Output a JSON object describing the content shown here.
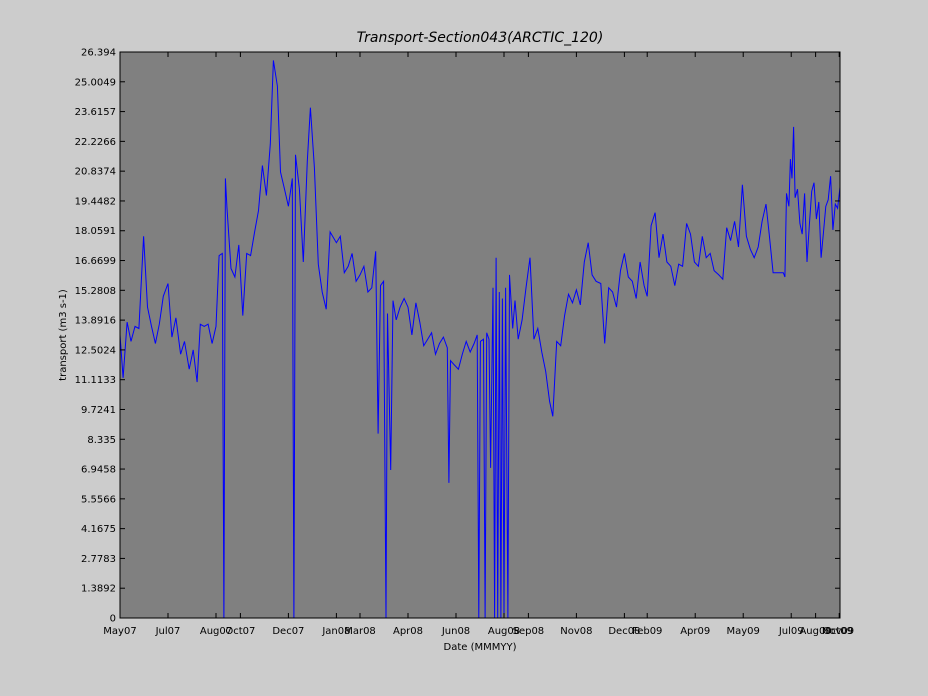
{
  "chart_data": {
    "type": "line",
    "title": "Transport-Section043(ARCTIC_120)",
    "xlabel": "Date (MMMYY)",
    "ylabel": "transport (m3 s-1)",
    "ylim": [
      0,
      26.394
    ],
    "xlim": [
      "2007-05-01",
      "2009-11-01"
    ],
    "grid": false,
    "legend": "none",
    "colors": {
      "figure_background": "#cccccc",
      "plot_background": "#808080",
      "line": "#0000ff",
      "axes": "#000000"
    },
    "y_ticks": [
      {
        "value": 0,
        "label": "0"
      },
      {
        "value": 1.3892,
        "label": "1.3892"
      },
      {
        "value": 2.7783,
        "label": "2.7783"
      },
      {
        "value": 4.1675,
        "label": "4.1675"
      },
      {
        "value": 5.5566,
        "label": "5.5566"
      },
      {
        "value": 6.9458,
        "label": "6.9458"
      },
      {
        "value": 8.335,
        "label": "8.335"
      },
      {
        "value": 9.7241,
        "label": "9.7241"
      },
      {
        "value": 11.1133,
        "label": "11.1133"
      },
      {
        "value": 12.5024,
        "label": "12.5024"
      },
      {
        "value": 13.8916,
        "label": "13.8916"
      },
      {
        "value": 15.2808,
        "label": "15.2808"
      },
      {
        "value": 16.6699,
        "label": "16.6699"
      },
      {
        "value": 18.0591,
        "label": "18.0591"
      },
      {
        "value": 19.4482,
        "label": "19.4482"
      },
      {
        "value": 20.8374,
        "label": "20.8374"
      },
      {
        "value": 22.2266,
        "label": "22.2266"
      },
      {
        "value": 23.6157,
        "label": "23.6157"
      },
      {
        "value": 25.0049,
        "label": "25.0049"
      },
      {
        "value": 26.394,
        "label": "26.394"
      }
    ],
    "x_ticks": [
      {
        "date": "2007-05-01",
        "label": "May07"
      },
      {
        "date": "2007-07-01",
        "label": "Jul07"
      },
      {
        "date": "2007-08-31",
        "label": "Aug07"
      },
      {
        "date": "2007-10-01",
        "label": "Oct07"
      },
      {
        "date": "2007-12-01",
        "label": "Dec07"
      },
      {
        "date": "2008-01-31",
        "label": "Jan08"
      },
      {
        "date": "2008-03-01",
        "label": "Mar08"
      },
      {
        "date": "2008-05-01",
        "label": "Apr08"
      },
      {
        "date": "2008-07-01",
        "label": "Jun08"
      },
      {
        "date": "2008-08-31",
        "label": "Aug08"
      },
      {
        "date": "2008-10-01",
        "label": "Sep08"
      },
      {
        "date": "2008-12-01",
        "label": "Nov08"
      },
      {
        "date": "2009-01-31",
        "label": "Dec08"
      },
      {
        "date": "2009-03-01",
        "label": "Feb09"
      },
      {
        "date": "2009-05-01",
        "label": "Apr09"
      },
      {
        "date": "2009-07-01",
        "label": "May09"
      },
      {
        "date": "2009-08-31",
        "label": "Jul09"
      },
      {
        "date": "2009-10-01",
        "label": "Aug09"
      },
      {
        "date": "2009-10-31",
        "label": "Oct09"
      },
      {
        "date": "2009-11-01",
        "label": "Nov09"
      }
    ],
    "series": [
      {
        "points": [
          [
            "2007-05-01",
            13.2
          ],
          [
            "2007-05-05",
            11.2
          ],
          [
            "2007-05-10",
            13.8
          ],
          [
            "2007-05-15",
            12.9
          ],
          [
            "2007-05-20",
            13.6
          ],
          [
            "2007-05-25",
            13.5
          ],
          [
            "2007-05-31",
            17.8
          ],
          [
            "2007-06-05",
            14.5
          ],
          [
            "2007-06-10",
            13.6
          ],
          [
            "2007-06-15",
            12.8
          ],
          [
            "2007-06-20",
            13.7
          ],
          [
            "2007-06-25",
            15.0
          ],
          [
            "2007-07-01",
            15.6
          ],
          [
            "2007-07-06",
            13.1
          ],
          [
            "2007-07-11",
            14.0
          ],
          [
            "2007-07-17",
            12.3
          ],
          [
            "2007-07-22",
            12.9
          ],
          [
            "2007-07-28",
            11.6
          ],
          [
            "2007-08-02",
            12.5
          ],
          [
            "2007-08-07",
            11.0
          ],
          [
            "2007-08-11",
            13.7
          ],
          [
            "2007-08-16",
            13.6
          ],
          [
            "2007-08-21",
            13.7
          ],
          [
            "2007-08-26",
            12.8
          ],
          [
            "2007-08-31",
            13.6
          ],
          [
            "2007-09-04",
            16.9
          ],
          [
            "2007-09-08",
            17.0
          ],
          [
            "2007-09-10",
            0.0
          ],
          [
            "2007-09-12",
            20.5
          ],
          [
            "2007-09-14",
            19.1
          ],
          [
            "2007-09-19",
            16.3
          ],
          [
            "2007-09-24",
            15.9
          ],
          [
            "2007-09-29",
            17.4
          ],
          [
            "2007-10-04",
            14.1
          ],
          [
            "2007-10-09",
            17.0
          ],
          [
            "2007-10-14",
            16.9
          ],
          [
            "2007-10-19",
            18.0
          ],
          [
            "2007-10-24",
            19.0
          ],
          [
            "2007-10-29",
            21.1
          ],
          [
            "2007-11-03",
            19.7
          ],
          [
            "2007-11-08",
            22.1
          ],
          [
            "2007-11-12",
            26.0
          ],
          [
            "2007-11-17",
            24.8
          ],
          [
            "2007-11-21",
            20.8
          ],
          [
            "2007-11-26",
            20.0
          ],
          [
            "2007-12-01",
            19.2
          ],
          [
            "2007-12-06",
            20.5
          ],
          [
            "2007-12-08",
            0.0
          ],
          [
            "2007-12-10",
            21.6
          ],
          [
            "2007-12-15",
            20.0
          ],
          [
            "2007-12-20",
            16.6
          ],
          [
            "2007-12-25",
            21.3
          ],
          [
            "2007-12-29",
            23.8
          ],
          [
            "2008-01-03",
            21.0
          ],
          [
            "2008-01-08",
            16.5
          ],
          [
            "2008-01-13",
            15.2
          ],
          [
            "2008-01-18",
            14.4
          ],
          [
            "2008-01-23",
            18.0
          ],
          [
            "2008-01-31",
            17.5
          ],
          [
            "2008-02-05",
            17.8
          ],
          [
            "2008-02-10",
            16.1
          ],
          [
            "2008-02-15",
            16.4
          ],
          [
            "2008-02-20",
            17.0
          ],
          [
            "2008-02-25",
            15.7
          ],
          [
            "2008-03-01",
            16.0
          ],
          [
            "2008-03-06",
            16.4
          ],
          [
            "2008-03-11",
            15.2
          ],
          [
            "2008-03-16",
            15.4
          ],
          [
            "2008-03-21",
            17.1
          ],
          [
            "2008-03-24",
            8.6
          ],
          [
            "2008-03-27",
            15.5
          ],
          [
            "2008-03-31",
            15.7
          ],
          [
            "2008-04-03",
            0.0
          ],
          [
            "2008-04-05",
            14.2
          ],
          [
            "2008-04-09",
            6.9
          ],
          [
            "2008-04-12",
            14.8
          ],
          [
            "2008-04-16",
            13.9
          ],
          [
            "2008-04-21",
            14.5
          ],
          [
            "2008-04-26",
            14.9
          ],
          [
            "2008-05-01",
            14.5
          ],
          [
            "2008-05-06",
            13.2
          ],
          [
            "2008-05-11",
            14.7
          ],
          [
            "2008-05-16",
            13.8
          ],
          [
            "2008-05-21",
            12.7
          ],
          [
            "2008-05-26",
            13.0
          ],
          [
            "2008-05-31",
            13.3
          ],
          [
            "2008-06-05",
            12.3
          ],
          [
            "2008-06-10",
            12.8
          ],
          [
            "2008-06-15",
            13.1
          ],
          [
            "2008-06-20",
            12.6
          ],
          [
            "2008-06-22",
            6.3
          ],
          [
            "2008-06-24",
            12.0
          ],
          [
            "2008-06-29",
            11.8
          ],
          [
            "2008-07-04",
            11.6
          ],
          [
            "2008-07-09",
            12.3
          ],
          [
            "2008-07-14",
            12.9
          ],
          [
            "2008-07-19",
            12.4
          ],
          [
            "2008-07-24",
            12.8
          ],
          [
            "2008-07-28",
            13.2
          ],
          [
            "2008-07-30",
            0.0
          ],
          [
            "2008-08-01",
            12.9
          ],
          [
            "2008-08-05",
            13.0
          ],
          [
            "2008-08-07",
            0.0
          ],
          [
            "2008-08-09",
            13.3
          ],
          [
            "2008-08-12",
            13.0
          ],
          [
            "2008-08-14",
            7.0
          ],
          [
            "2008-08-17",
            15.4
          ],
          [
            "2008-08-19",
            0.0
          ],
          [
            "2008-08-21",
            16.8
          ],
          [
            "2008-08-23",
            0.0
          ],
          [
            "2008-08-25",
            15.2
          ],
          [
            "2008-08-27",
            0.0
          ],
          [
            "2008-08-29",
            14.9
          ],
          [
            "2008-08-31",
            0.0
          ],
          [
            "2008-09-02",
            15.4
          ],
          [
            "2008-09-05",
            0.0
          ],
          [
            "2008-09-07",
            16.0
          ],
          [
            "2008-09-11",
            13.5
          ],
          [
            "2008-09-14",
            14.8
          ],
          [
            "2008-09-18",
            13.0
          ],
          [
            "2008-09-23",
            13.9
          ],
          [
            "2008-09-28",
            15.4
          ],
          [
            "2008-10-03",
            16.8
          ],
          [
            "2008-10-08",
            13.0
          ],
          [
            "2008-10-13",
            13.5
          ],
          [
            "2008-10-18",
            12.4
          ],
          [
            "2008-10-23",
            11.5
          ],
          [
            "2008-10-28",
            10.1
          ],
          [
            "2008-11-01",
            9.4
          ],
          [
            "2008-11-06",
            12.9
          ],
          [
            "2008-11-11",
            12.7
          ],
          [
            "2008-11-16",
            14.1
          ],
          [
            "2008-11-21",
            15.1
          ],
          [
            "2008-11-26",
            14.7
          ],
          [
            "2008-12-01",
            15.3
          ],
          [
            "2008-12-06",
            14.6
          ],
          [
            "2008-12-11",
            16.6
          ],
          [
            "2008-12-16",
            17.5
          ],
          [
            "2008-12-21",
            16.0
          ],
          [
            "2008-12-26",
            15.7
          ],
          [
            "2009-01-01",
            15.6
          ],
          [
            "2009-01-06",
            12.8
          ],
          [
            "2009-01-11",
            15.4
          ],
          [
            "2009-01-16",
            15.2
          ],
          [
            "2009-01-21",
            14.5
          ],
          [
            "2009-01-26",
            16.2
          ],
          [
            "2009-01-31",
            17.0
          ],
          [
            "2009-02-05",
            15.9
          ],
          [
            "2009-02-10",
            15.7
          ],
          [
            "2009-02-15",
            14.9
          ],
          [
            "2009-02-20",
            16.6
          ],
          [
            "2009-02-25",
            15.5
          ],
          [
            "2009-03-01",
            15.0
          ],
          [
            "2009-03-06",
            18.3
          ],
          [
            "2009-03-11",
            18.9
          ],
          [
            "2009-03-16",
            16.8
          ],
          [
            "2009-03-21",
            17.9
          ],
          [
            "2009-03-26",
            16.6
          ],
          [
            "2009-03-31",
            16.4
          ],
          [
            "2009-04-05",
            15.5
          ],
          [
            "2009-04-10",
            16.5
          ],
          [
            "2009-04-15",
            16.4
          ],
          [
            "2009-04-20",
            18.4
          ],
          [
            "2009-04-25",
            17.9
          ],
          [
            "2009-04-30",
            16.6
          ],
          [
            "2009-05-05",
            16.4
          ],
          [
            "2009-05-10",
            17.8
          ],
          [
            "2009-05-15",
            16.8
          ],
          [
            "2009-05-20",
            17.0
          ],
          [
            "2009-05-25",
            16.2
          ],
          [
            "2009-05-31",
            16.0
          ],
          [
            "2009-06-05",
            15.8
          ],
          [
            "2009-06-10",
            18.2
          ],
          [
            "2009-06-15",
            17.6
          ],
          [
            "2009-06-20",
            18.5
          ],
          [
            "2009-06-25",
            17.3
          ],
          [
            "2009-06-30",
            20.2
          ],
          [
            "2009-07-05",
            17.8
          ],
          [
            "2009-07-10",
            17.2
          ],
          [
            "2009-07-15",
            16.8
          ],
          [
            "2009-07-20",
            17.3
          ],
          [
            "2009-07-25",
            18.5
          ],
          [
            "2009-07-30",
            19.3
          ],
          [
            "2009-08-03",
            17.9
          ],
          [
            "2009-08-08",
            16.1
          ],
          [
            "2009-08-12",
            16.1
          ],
          [
            "2009-08-16",
            16.1
          ],
          [
            "2009-08-21",
            16.1
          ],
          [
            "2009-08-23",
            15.9
          ],
          [
            "2009-08-25",
            19.8
          ],
          [
            "2009-08-28",
            19.2
          ],
          [
            "2009-08-30",
            21.4
          ],
          [
            "2009-09-01",
            20.5
          ],
          [
            "2009-09-03",
            22.9
          ],
          [
            "2009-09-05",
            19.6
          ],
          [
            "2009-09-08",
            20.0
          ],
          [
            "2009-09-11",
            18.4
          ],
          [
            "2009-09-14",
            17.9
          ],
          [
            "2009-09-17",
            19.8
          ],
          [
            "2009-09-20",
            16.6
          ],
          [
            "2009-09-23",
            18.3
          ],
          [
            "2009-09-26",
            19.9
          ],
          [
            "2009-09-29",
            20.3
          ],
          [
            "2009-10-02",
            18.6
          ],
          [
            "2009-10-05",
            19.4
          ],
          [
            "2009-10-08",
            16.8
          ],
          [
            "2009-10-11",
            18.0
          ],
          [
            "2009-10-14",
            19.2
          ],
          [
            "2009-10-17",
            19.5
          ],
          [
            "2009-10-20",
            20.6
          ],
          [
            "2009-10-23",
            18.1
          ],
          [
            "2009-10-26",
            19.3
          ],
          [
            "2009-10-29",
            19.1
          ],
          [
            "2009-11-01",
            20.1
          ]
        ]
      }
    ]
  }
}
